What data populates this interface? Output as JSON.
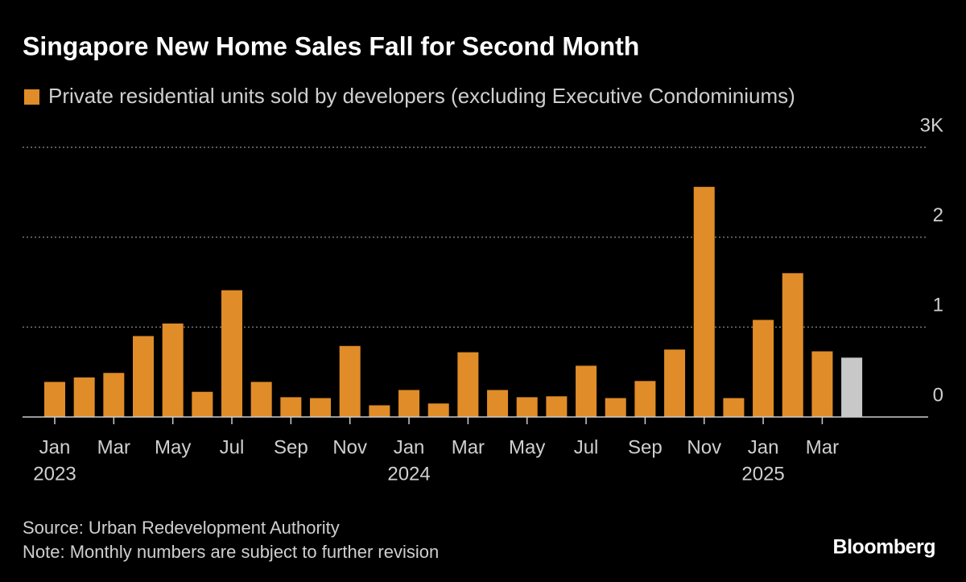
{
  "chart_data": {
    "type": "bar",
    "title": "Singapore New Home Sales Fall for Second Month",
    "legend": "Private residential units sold by developers (excluding Executive Condominiums)",
    "categories": [
      "Jan",
      null,
      "Mar",
      null,
      "May",
      null,
      "Jul",
      null,
      "Sep",
      null,
      "Nov",
      null,
      "Jan",
      null,
      "Mar",
      null,
      "May",
      null,
      "Jul",
      null,
      "Sep",
      null,
      "Nov",
      null,
      "Jan",
      null,
      "Mar",
      null
    ],
    "year_labels": [
      "2023",
      null,
      null,
      null,
      null,
      null,
      null,
      null,
      null,
      null,
      null,
      null,
      "2024",
      null,
      null,
      null,
      null,
      null,
      null,
      null,
      null,
      null,
      null,
      null,
      "2025",
      null,
      null,
      null
    ],
    "values": [
      0.39,
      0.44,
      0.49,
      0.9,
      1.04,
      0.28,
      1.41,
      0.39,
      0.22,
      0.21,
      0.79,
      0.13,
      0.3,
      0.15,
      0.72,
      0.3,
      0.22,
      0.23,
      0.57,
      0.21,
      0.4,
      0.75,
      2.56,
      0.21,
      1.08,
      1.6,
      0.73,
      0.66
    ],
    "colors": [
      "#e08c28",
      "#e08c28",
      "#e08c28",
      "#e08c28",
      "#e08c28",
      "#e08c28",
      "#e08c28",
      "#e08c28",
      "#e08c28",
      "#e08c28",
      "#e08c28",
      "#e08c28",
      "#e08c28",
      "#e08c28",
      "#e08c28",
      "#e08c28",
      "#e08c28",
      "#e08c28",
      "#e08c28",
      "#e08c28",
      "#e08c28",
      "#e08c28",
      "#e08c28",
      "#e08c28",
      "#e08c28",
      "#e08c28",
      "#e08c28",
      "#c8c8c8"
    ],
    "color": "#e08c28",
    "ylim": [
      0,
      3
    ],
    "yticks": [
      0,
      1,
      2,
      {
        "value": 3,
        "label": "3K"
      }
    ],
    "grid": true,
    "source": "Source: Urban Redevelopment Authority",
    "note": "Note: Monthly numbers are subject to further revision",
    "brand": "Bloomberg"
  }
}
